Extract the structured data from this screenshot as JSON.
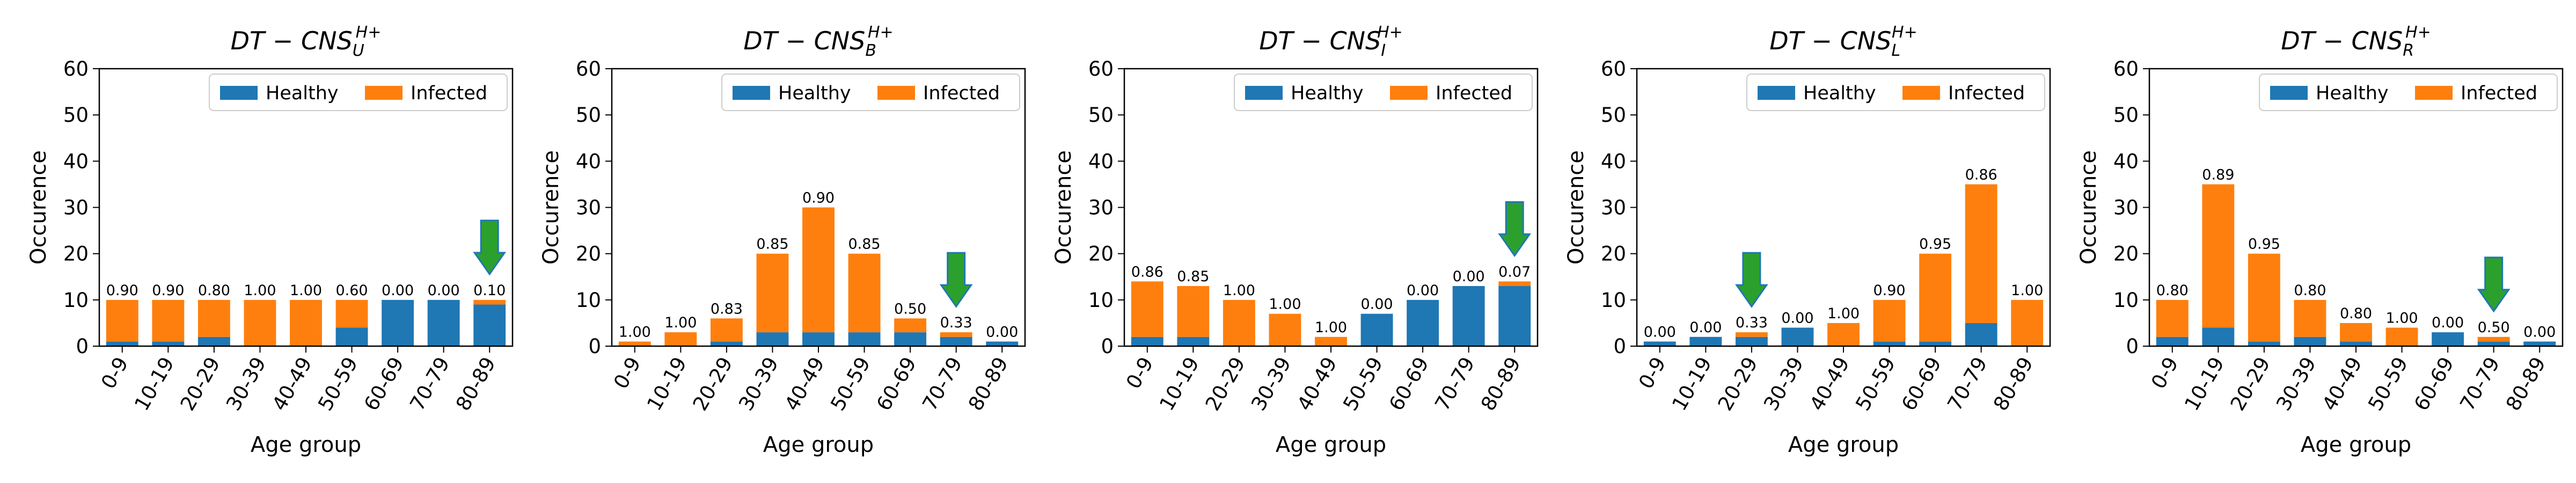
{
  "chart_data": [
    {
      "type": "bar",
      "stacked": true,
      "title": "DT − CNS_U^{H+}",
      "title_main": "DT − CNS",
      "title_sub": "U",
      "title_sup": "H+",
      "xlabel": "Age group",
      "ylabel": "Occurence",
      "ylim": [
        0,
        60
      ],
      "yticks": [
        "0",
        "10",
        "20",
        "30",
        "40",
        "50",
        "60"
      ],
      "categories": [
        "0-9",
        "10-19",
        "20-29",
        "30-39",
        "40-49",
        "50-59",
        "60-69",
        "70-79",
        "80-89"
      ],
      "series": [
        {
          "name": "Healthy",
          "color": "#1f77b4",
          "values": [
            1,
            1,
            2,
            0,
            0,
            4,
            10,
            10,
            9
          ]
        },
        {
          "name": "Infected",
          "color": "#ff7f0e",
          "values": [
            9,
            9,
            8,
            10,
            10,
            6,
            0,
            0,
            1
          ]
        }
      ],
      "bar_labels": [
        "0.90",
        "0.90",
        "0.80",
        "1.00",
        "1.00",
        "0.60",
        "0.00",
        "0.00",
        "0.10"
      ],
      "legend": [
        "Healthy",
        "Infected"
      ],
      "legend_position": "upper right",
      "arrow_category": "80-89"
    },
    {
      "type": "bar",
      "stacked": true,
      "title": "DT − CNS_B^{H+}",
      "title_main": "DT − CNS",
      "title_sub": "B",
      "title_sup": "H+",
      "xlabel": "Age group",
      "ylabel": "Occurence",
      "ylim": [
        0,
        60
      ],
      "yticks": [
        "0",
        "10",
        "20",
        "30",
        "40",
        "50",
        "60"
      ],
      "categories": [
        "0-9",
        "10-19",
        "20-29",
        "30-39",
        "40-49",
        "50-59",
        "60-69",
        "70-79",
        "80-89"
      ],
      "series": [
        {
          "name": "Healthy",
          "color": "#1f77b4",
          "values": [
            0,
            0,
            1,
            3,
            3,
            3,
            3,
            2,
            1
          ]
        },
        {
          "name": "Infected",
          "color": "#ff7f0e",
          "values": [
            1,
            3,
            5,
            17,
            27,
            17,
            3,
            1,
            0
          ]
        }
      ],
      "bar_labels": [
        "1.00",
        "1.00",
        "0.83",
        "0.85",
        "0.90",
        "0.85",
        "0.50",
        "0.33",
        "0.00"
      ],
      "legend": [
        "Healthy",
        "Infected"
      ],
      "legend_position": "upper right",
      "arrow_category": "70-79"
    },
    {
      "type": "bar",
      "stacked": true,
      "title": "DT − CNS_I^{H+}",
      "title_main": "DT − CNS",
      "title_sub": "I",
      "title_sup": "H+",
      "xlabel": "Age group",
      "ylabel": "Occurence",
      "ylim": [
        0,
        60
      ],
      "yticks": [
        "0",
        "10",
        "20",
        "30",
        "40",
        "50",
        "60"
      ],
      "categories": [
        "0-9",
        "10-19",
        "20-29",
        "30-39",
        "40-49",
        "50-59",
        "60-69",
        "70-79",
        "80-89"
      ],
      "series": [
        {
          "name": "Healthy",
          "color": "#1f77b4",
          "values": [
            2,
            2,
            0,
            0,
            0,
            7,
            10,
            13,
            13
          ]
        },
        {
          "name": "Infected",
          "color": "#ff7f0e",
          "values": [
            12,
            11,
            10,
            7,
            2,
            0,
            0,
            0,
            1
          ]
        }
      ],
      "bar_labels": [
        "0.86",
        "0.85",
        "1.00",
        "1.00",
        "1.00",
        "0.00",
        "0.00",
        "0.00",
        "0.07"
      ],
      "legend": [
        "Healthy",
        "Infected"
      ],
      "legend_position": "upper right",
      "arrow_category": "80-89"
    },
    {
      "type": "bar",
      "stacked": true,
      "title": "DT − CNS_L^{H+}",
      "title_main": "DT − CNS",
      "title_sub": "L",
      "title_sup": "H+",
      "xlabel": "Age group",
      "ylabel": "Occurence",
      "ylim": [
        0,
        60
      ],
      "yticks": [
        "0",
        "10",
        "20",
        "30",
        "40",
        "50",
        "60"
      ],
      "categories": [
        "0-9",
        "10-19",
        "20-29",
        "30-39",
        "40-49",
        "50-59",
        "60-69",
        "70-79",
        "80-89"
      ],
      "series": [
        {
          "name": "Healthy",
          "color": "#1f77b4",
          "values": [
            1,
            2,
            2,
            4,
            0,
            1,
            1,
            5,
            0
          ]
        },
        {
          "name": "Infected",
          "color": "#ff7f0e",
          "values": [
            0,
            0,
            1,
            0,
            5,
            9,
            19,
            30,
            10
          ]
        }
      ],
      "bar_labels": [
        "0.00",
        "0.00",
        "0.33",
        "0.00",
        "1.00",
        "0.90",
        "0.95",
        "0.86",
        "1.00"
      ],
      "legend": [
        "Healthy",
        "Infected"
      ],
      "legend_position": "upper right",
      "arrow_category": "20-29"
    },
    {
      "type": "bar",
      "stacked": true,
      "title": "DT − CNS_R^{H+}",
      "title_main": "DT − CNS",
      "title_sub": "R",
      "title_sup": "H+",
      "xlabel": "Age group",
      "ylabel": "Occurence",
      "ylim": [
        0,
        60
      ],
      "yticks": [
        "0",
        "10",
        "20",
        "30",
        "40",
        "50",
        "60"
      ],
      "categories": [
        "0-9",
        "10-19",
        "20-29",
        "30-39",
        "40-49",
        "50-59",
        "60-69",
        "70-79",
        "80-89"
      ],
      "series": [
        {
          "name": "Healthy",
          "color": "#1f77b4",
          "values": [
            2,
            4,
            1,
            2,
            1,
            0,
            3,
            1,
            1
          ]
        },
        {
          "name": "Infected",
          "color": "#ff7f0e",
          "values": [
            8,
            31,
            19,
            8,
            4,
            4,
            0,
            1,
            0
          ]
        }
      ],
      "bar_labels": [
        "0.80",
        "0.89",
        "0.95",
        "0.80",
        "0.80",
        "1.00",
        "0.00",
        "0.50",
        "0.00"
      ],
      "legend": [
        "Healthy",
        "Infected"
      ],
      "legend_position": "upper right",
      "arrow_category": "70-79"
    }
  ],
  "colors": {
    "healthy": "#1f77b4",
    "infected": "#ff7f0e",
    "arrow_fill": "#2ca02c",
    "arrow_stroke": "#1f77b4"
  }
}
